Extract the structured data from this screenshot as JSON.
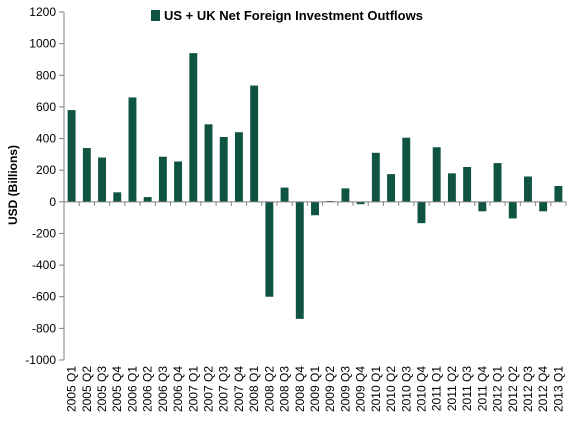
{
  "chart_data": {
    "type": "bar",
    "title": "",
    "xlabel": "",
    "ylabel": "USD (Billions)",
    "ylim": [
      -1000,
      1200
    ],
    "yticks": [
      1200,
      1000,
      800,
      600,
      400,
      200,
      0,
      -200,
      -400,
      -600,
      -800,
      -1000
    ],
    "grid": false,
    "legend_position": "top-center",
    "categories": [
      "2005 Q1",
      "2005 Q2",
      "2005 Q3",
      "2005 Q4",
      "2006 Q1",
      "2006 Q2",
      "2006 Q3",
      "2006 Q4",
      "2007 Q1",
      "2007 Q2",
      "2007 Q3",
      "2007 Q4",
      "2008 Q1",
      "2008 Q2",
      "2008 Q3",
      "2008 Q4",
      "2009 Q1",
      "2009 Q2",
      "2009 Q3",
      "2009 Q4",
      "2010 Q1",
      "2010 Q2",
      "2010 Q3",
      "2010 Q4",
      "2011 Q1",
      "2011 Q2",
      "2011 Q3",
      "2011 Q4",
      "2012 Q1",
      "2012 Q2",
      "2012 Q3",
      "2012 Q4",
      "2013 Q1"
    ],
    "series": [
      {
        "name": "US + UK Net Foreign Investment Outflows",
        "color": "#0f5443",
        "values": [
          580,
          340,
          280,
          60,
          660,
          30,
          285,
          255,
          940,
          490,
          410,
          440,
          735,
          -600,
          90,
          -740,
          -85,
          5,
          85,
          -15,
          310,
          175,
          405,
          -135,
          345,
          180,
          220,
          -60,
          245,
          -105,
          160,
          -60,
          100
        ]
      }
    ]
  }
}
